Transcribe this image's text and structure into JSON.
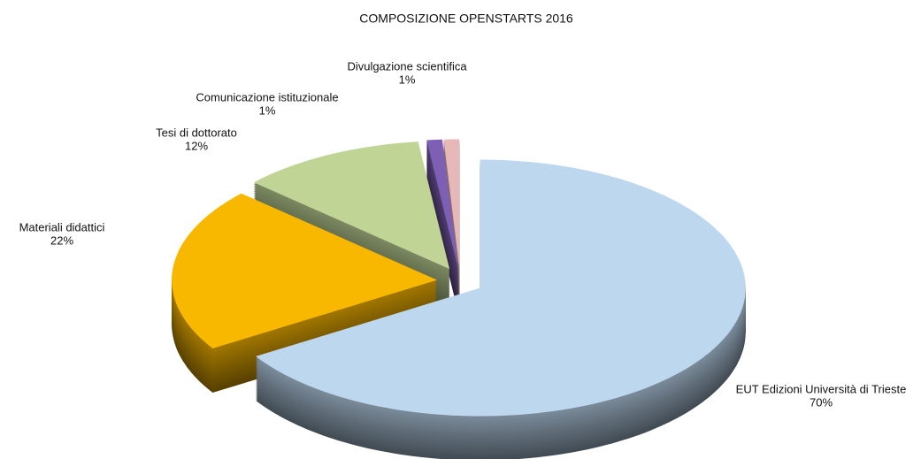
{
  "chart_data": {
    "type": "pie",
    "title": "COMPOSIZIONE OPENSTARTS 2016",
    "categories": [
      "EUT Edizioni Università di Trieste",
      "Materiali didattici",
      "Tesi di dottorato",
      "Comunicazione istituzionale",
      "Divulgazione scientifica"
    ],
    "values": [
      70,
      22,
      12,
      1,
      1
    ],
    "value_labels": [
      "70%",
      "22%",
      "12%",
      "1%",
      "1%"
    ],
    "colors": [
      "#bdd7ee",
      "#f9b800",
      "#c0d496",
      "#7d5fb3",
      "#e6b9b8"
    ]
  }
}
